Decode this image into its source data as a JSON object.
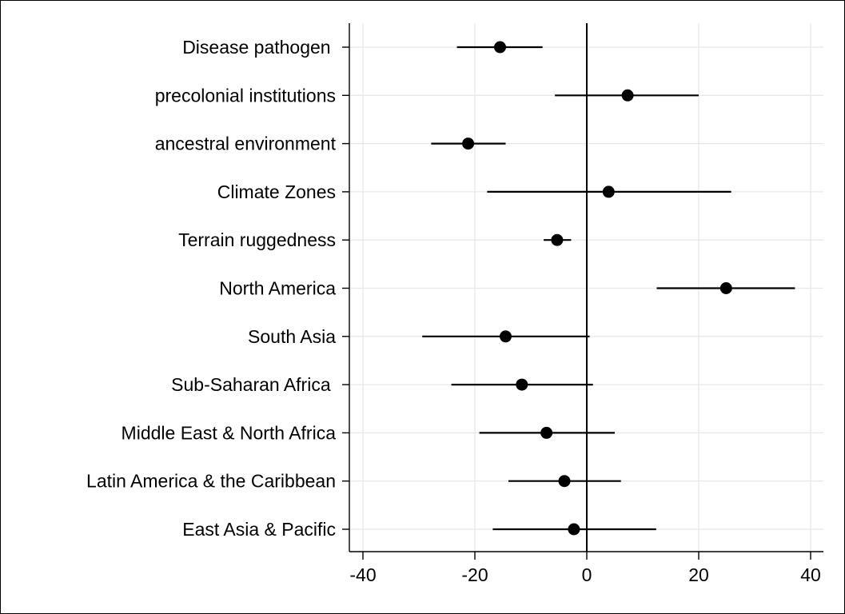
{
  "chart_data": {
    "type": "scatter",
    "subtype": "coefficient-plot",
    "title": "",
    "xlabel": "",
    "ylabel": "",
    "xlim": [
      -40,
      40
    ],
    "x_ticks": [
      -40,
      -20,
      0,
      20,
      40
    ],
    "x_tick_labels": [
      "-40",
      "-20",
      "0",
      "20",
      "40"
    ],
    "grid": true,
    "reference_line_x": 0,
    "marker_color": "#000000",
    "grid_color": "#e8e8e8",
    "categories": [
      "Disease pathogen ",
      "precolonial institutions",
      "ancestral environment",
      "Climate Zones",
      "Terrain ruggedness",
      "North America",
      "South Asia",
      "Sub-Saharan Africa ",
      "Middle East & North Africa",
      "Latin America & the Caribbean",
      "East Asia & Pacific"
    ],
    "series": [
      {
        "estimates": [
          -15.5,
          7.3,
          -21.2,
          3.9,
          -5.3,
          24.9,
          -14.5,
          -11.6,
          -7.2,
          -4.0,
          -2.3
        ],
        "ci_low": [
          -23.2,
          -5.7,
          -27.8,
          -17.8,
          -7.7,
          12.5,
          -29.4,
          -24.2,
          -19.2,
          -14.0,
          -16.8
        ],
        "ci_high": [
          -7.9,
          20.0,
          -14.5,
          25.8,
          -2.8,
          37.2,
          0.5,
          1.1,
          5.0,
          6.1,
          12.4
        ]
      }
    ]
  }
}
